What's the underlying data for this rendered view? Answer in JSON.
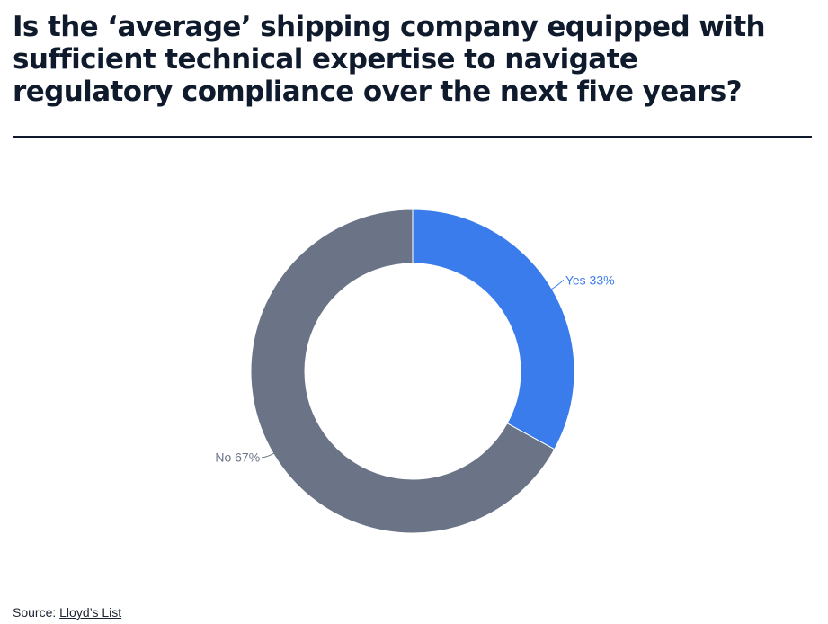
{
  "header": {
    "title": "Is the ‘average’ shipping company equipped with sufficient technical expertise to navigate regulatory compliance over the next five years?"
  },
  "footer": {
    "source_prefix": "Source:",
    "source_link": "Lloyd’s List"
  },
  "chart_data": {
    "type": "pie",
    "donut": true,
    "title": "Is the ‘average’ shipping company equipped with sufficient technical expertise to navigate regulatory compliance over the next five years?",
    "categories": [
      "Yes",
      "No"
    ],
    "values": [
      33,
      67
    ],
    "labels": [
      "Yes 33%",
      "No 67%"
    ],
    "colors": [
      "#3b7ced",
      "#6b7487"
    ],
    "label_colors": [
      "#3b7ced",
      "#6b7487"
    ],
    "slice_border_color": "#ffffff"
  }
}
